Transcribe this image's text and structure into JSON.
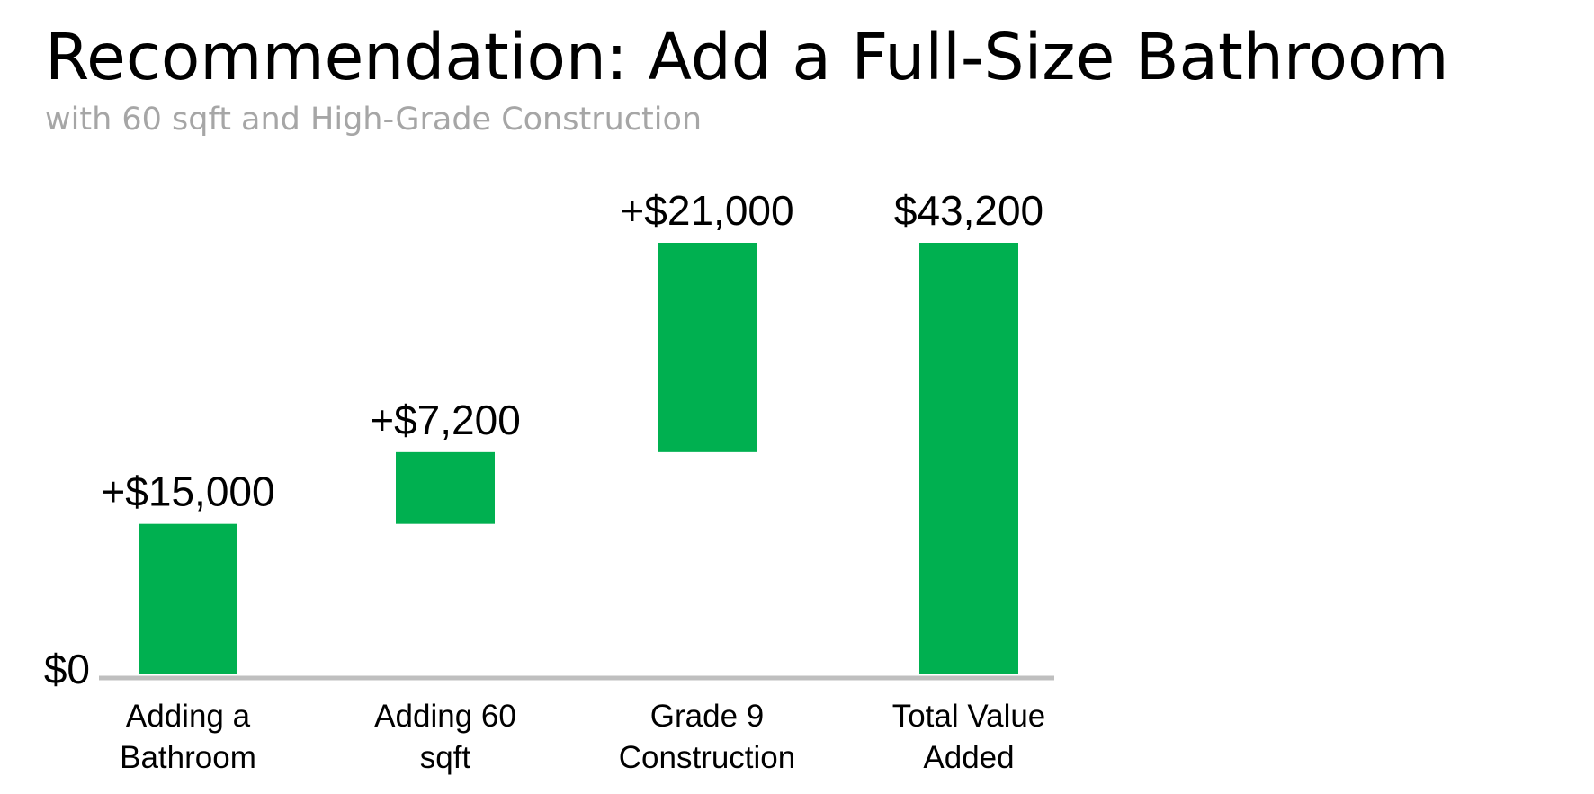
{
  "chart_data": {
    "type": "bar",
    "title": "Recommendation: Add a Full-Size Bathroom",
    "subtitle": "with 60 sqft and High-Grade Construction",
    "categories": [
      [
        "Adding a",
        "Bathroom"
      ],
      [
        "Adding 60",
        "sqft"
      ],
      [
        "Grade 9",
        "Construction"
      ],
      [
        "Total Value",
        "Added"
      ]
    ],
    "bars": [
      {
        "label": "+$15,000",
        "start": 0,
        "end": 15000
      },
      {
        "label": "+$7,200",
        "start": 15000,
        "end": 22200
      },
      {
        "label": "+$21,000",
        "start": 22200,
        "end": 43200
      },
      {
        "label": "$43,200",
        "start": 0,
        "end": 43200
      }
    ],
    "y_axis_label": "$0",
    "ylim": [
      0,
      43200
    ],
    "grid": false,
    "legend": "none",
    "colors": {
      "bar": "#00b050",
      "baseline": "#bfbfbf",
      "subtitle": "#a6a6a6"
    }
  }
}
